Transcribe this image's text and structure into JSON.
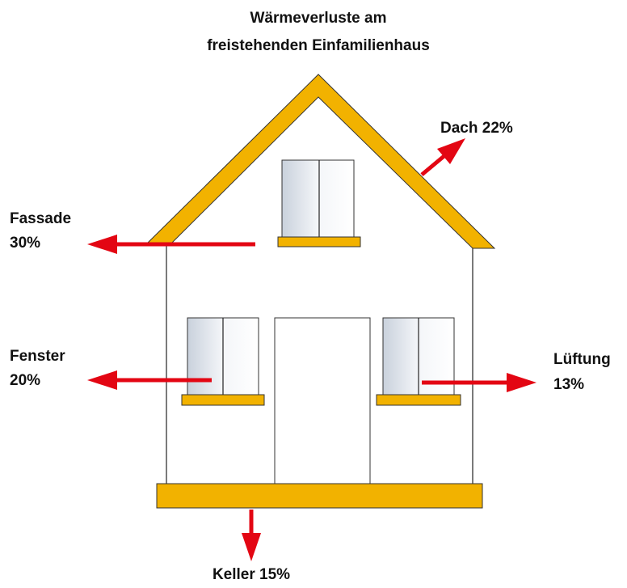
{
  "title": {
    "lines": [
      "Wärmeverluste am",
      "freistehenden Einfamilienhaus"
    ]
  },
  "losses": {
    "dach": {
      "label": "Dach",
      "value": "22%"
    },
    "fassade": {
      "label": "Fassade",
      "value": "30%"
    },
    "fenster": {
      "label": "Fenster",
      "value": "20%"
    },
    "lueftung": {
      "label": "Lüftung",
      "value": "13%"
    },
    "keller": {
      "label": "Keller",
      "value": "15%"
    }
  }
}
